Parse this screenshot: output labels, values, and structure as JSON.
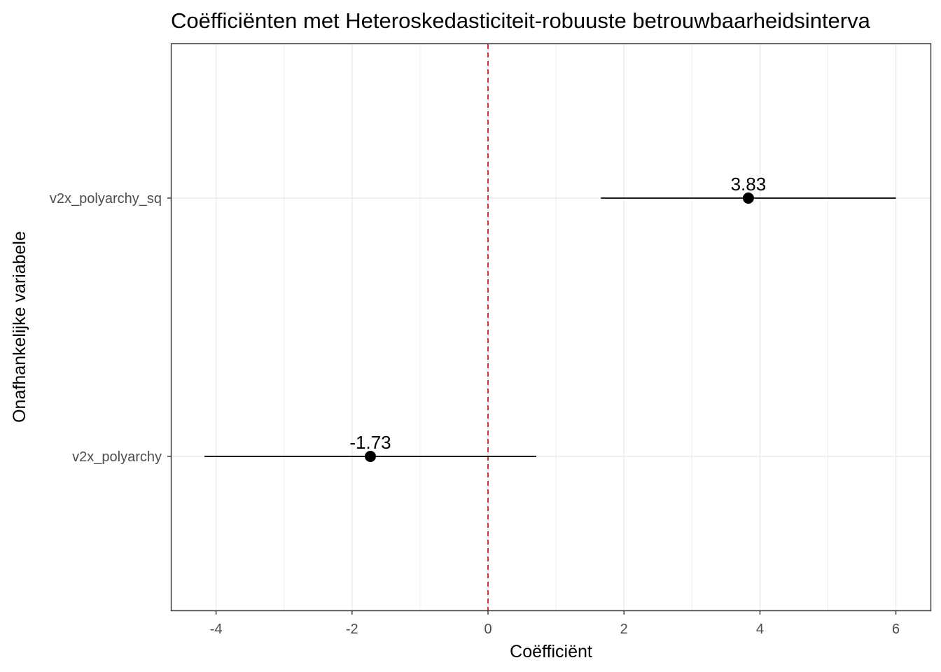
{
  "chart_data": {
    "type": "scatter",
    "subtype": "coefficient-plot",
    "title": "Coëfficiënten met Heteroskedasticiteit-robuuste betrouwbaarheidsinterva",
    "xlabel": "Coëfficiënt",
    "ylabel": "Onafhankelijke variabele",
    "xlim": [
      -4.7,
      6.5
    ],
    "x_ticks": [
      -4,
      -2,
      0,
      2,
      4,
      6
    ],
    "categories": [
      "v2x_polyarchy",
      "v2x_polyarchy_sq"
    ],
    "points": [
      {
        "variable": "v2x_polyarchy",
        "estimate": -1.73,
        "ci_low": -4.17,
        "ci_high": 0.71,
        "label": "-1.73"
      },
      {
        "variable": "v2x_polyarchy_sq",
        "estimate": 3.83,
        "ci_low": 1.66,
        "ci_high": 6.0,
        "label": "3.83"
      }
    ],
    "reference_line": {
      "x": 0,
      "style": "dashed",
      "color": "#cc1f1f"
    },
    "grid": true,
    "legend": "none",
    "colors": {
      "point": "#000000",
      "errorbar": "#000000",
      "grid": "#ebebeb",
      "panel_border": "#333333"
    }
  }
}
